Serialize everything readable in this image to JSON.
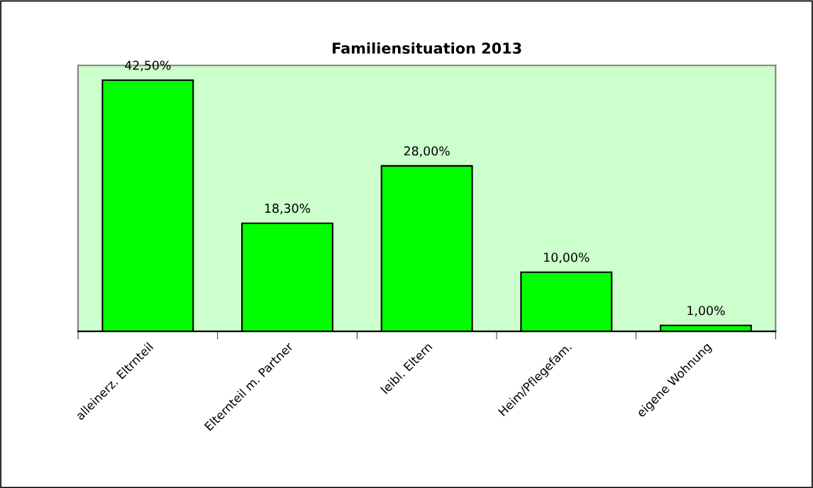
{
  "chart_data": {
    "type": "bar",
    "title": "Familiensituation 2013",
    "categories": [
      "alleinerz. Eltrnteil",
      "Elternteil m. Partner",
      "leibl. Eltern",
      "Heim/Pflegefam.",
      "eigene Wohnung"
    ],
    "values": [
      42.5,
      18.3,
      28.0,
      10.0,
      1.0
    ],
    "value_labels": [
      "42,50%",
      "18,30%",
      "28,00%",
      "10,00%",
      "1,00%"
    ],
    "color": "#00ff00",
    "ylim": [
      0,
      45
    ],
    "tick_labels": "x",
    "grid": false,
    "legend": false
  }
}
